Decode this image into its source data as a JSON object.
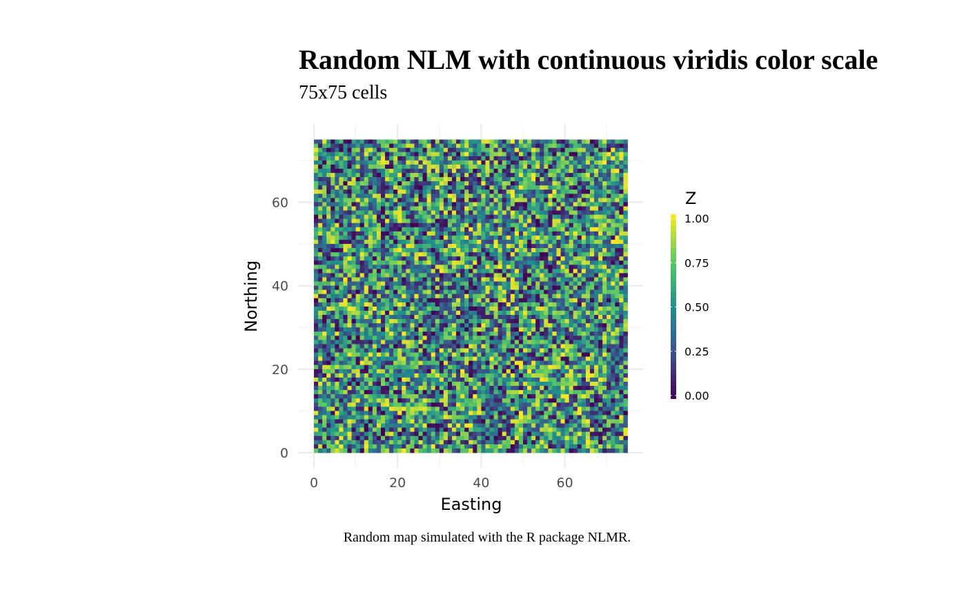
{
  "chart_data": {
    "type": "heatmap",
    "title": "Random NLM with continuous viridis color scale",
    "subtitle": "75x75 cells",
    "caption": "Random map simulated with the R package NLMR.",
    "xlabel": "Easting",
    "ylabel": "Northing",
    "nrows": 75,
    "ncols": 75,
    "xlim": [
      0,
      75
    ],
    "ylim": [
      0,
      75
    ],
    "x_ticks": [
      0,
      20,
      40,
      60
    ],
    "x_tick_labels": [
      "0",
      "20",
      "40",
      "60"
    ],
    "y_ticks": [
      0,
      20,
      40,
      60
    ],
    "y_tick_labels": [
      "0",
      "20",
      "40",
      "60"
    ],
    "grid": true,
    "value_distribution": "uniform random in [0, 1]",
    "legend": {
      "title": "Z",
      "position": "right",
      "range": [
        0,
        1
      ],
      "ticks": [
        0,
        0.25,
        0.5,
        0.75,
        1
      ],
      "tick_labels": [
        "0.00",
        "0.25",
        "0.50",
        "0.75",
        "1.00"
      ]
    },
    "colorscale": {
      "name": "viridis",
      "stops": [
        "#440154",
        "#3b528b",
        "#21908c",
        "#5dc963",
        "#fde725"
      ]
    }
  }
}
